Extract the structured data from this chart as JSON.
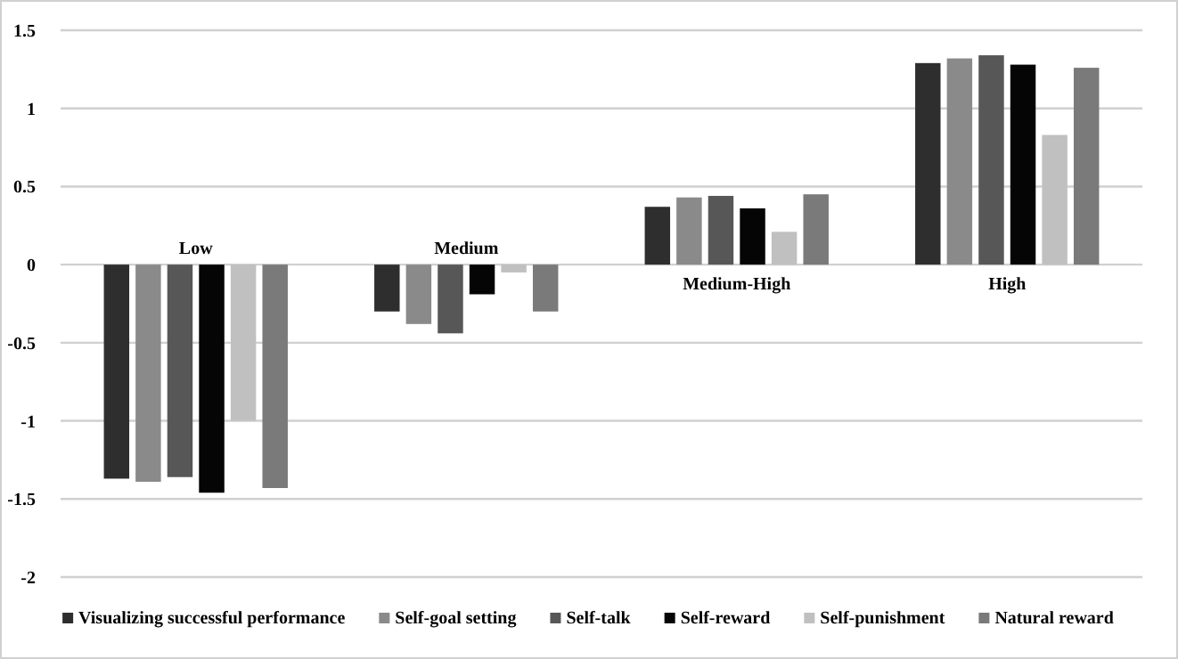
{
  "chart_data": {
    "type": "bar",
    "categories": [
      "Low",
      "Medium",
      "Medium-High",
      "High"
    ],
    "series": [
      {
        "name": "Visualizing successful performance",
        "color": "#2e2e2e",
        "values": [
          -1.37,
          -0.3,
          0.37,
          1.29
        ]
      },
      {
        "name": "Self-goal setting",
        "color": "#8a8a8a",
        "values": [
          -1.39,
          -0.38,
          0.43,
          1.32
        ]
      },
      {
        "name": "Self-talk",
        "color": "#575757",
        "values": [
          -1.36,
          -0.44,
          0.44,
          1.34
        ]
      },
      {
        "name": "Self-reward",
        "color": "#050505",
        "values": [
          -1.46,
          -0.19,
          0.36,
          1.28
        ]
      },
      {
        "name": "Self-punishment",
        "color": "#c0c0c0",
        "values": [
          -1.0,
          -0.05,
          0.21,
          0.83
        ]
      },
      {
        "name": "Natural reward",
        "color": "#7a7a7a",
        "values": [
          -1.43,
          -0.3,
          0.45,
          1.26
        ]
      }
    ],
    "ylim": [
      -2,
      1.5
    ],
    "yticks": [
      -2,
      -1.5,
      -1,
      -0.5,
      0,
      0.5,
      1,
      1.5
    ],
    "grid": "y",
    "legend": "bottom"
  }
}
